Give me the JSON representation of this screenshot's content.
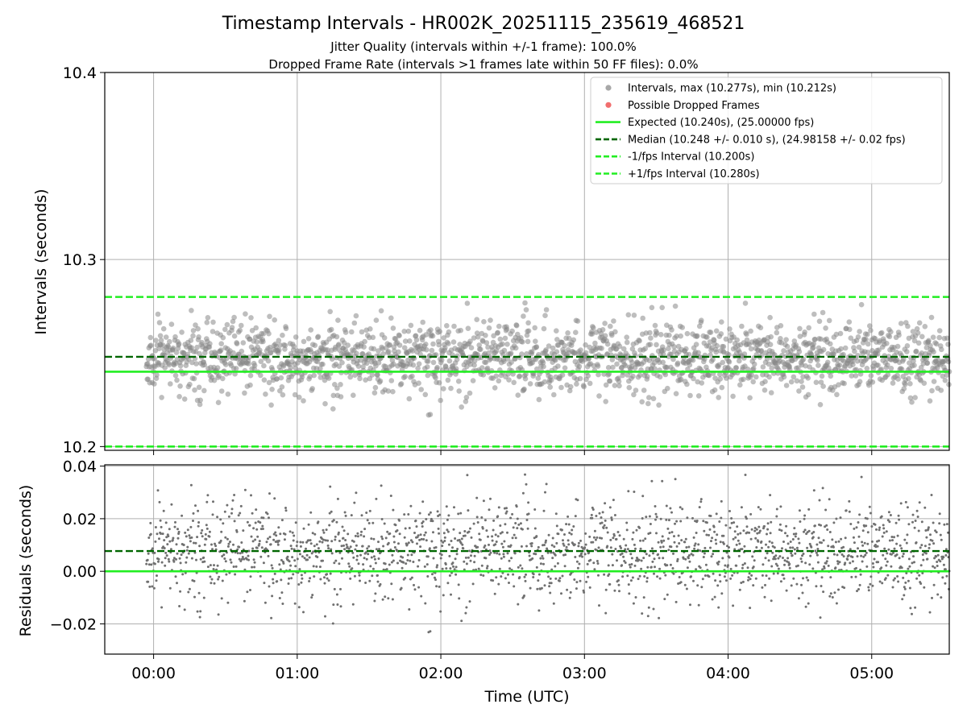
{
  "chart_data": [
    {
      "type": "scatter",
      "panel": "intervals",
      "title": "Timestamp Intervals - HR002K_20251115_235619_468521",
      "subtitle_1": "Jitter Quality (intervals within +/-1 frame): 100.0%",
      "subtitle_2": "Dropped Frame Rate (intervals >1 frames late within 50 FF files): 0.0%",
      "xlabel": "",
      "ylabel": "Intervals (seconds)",
      "xlim_hours": [
        -0.34,
        5.54
      ],
      "ylim": [
        10.198,
        10.4
      ],
      "yticks": [
        10.2,
        10.3,
        10.4
      ],
      "ytick_labels": [
        "10.2",
        "10.3",
        "10.4"
      ],
      "grid": true,
      "legend_position": "top-right",
      "legend": [
        {
          "label": "Intervals, max (10.277s), min (10.212s)",
          "kind": "point",
          "color": "#999999"
        },
        {
          "label": "Possible Dropped Frames",
          "kind": "point",
          "color": "#ee5555"
        },
        {
          "label": "Expected (10.240s), (25.00000 fps)",
          "kind": "solid",
          "color": "#22ee22"
        },
        {
          "label": "Median (10.248 +/- 0.010 s), (24.98158 +/- 0.02 fps)",
          "kind": "dashed",
          "color": "#006600"
        },
        {
          "label": "-1/fps Interval (10.200s)",
          "kind": "dashed",
          "color": "#22ee22"
        },
        {
          "label": "+1/fps Interval (10.280s)",
          "kind": "dashed",
          "color": "#22ee22"
        }
      ],
      "reference_lines": {
        "expected": 10.24,
        "median": 10.248,
        "minus_1fps": 10.2,
        "plus_1fps": 10.28
      },
      "series": [
        {
          "name": "Intervals",
          "n_points": 1950,
          "x_range_hours": [
            -0.05,
            5.54
          ],
          "mean": 10.248,
          "std": 0.0095,
          "max": 10.277,
          "min": 10.212
        },
        {
          "name": "Possible Dropped Frames",
          "n_points": 0
        }
      ]
    },
    {
      "type": "scatter",
      "panel": "residuals",
      "xlabel": "Time (UTC)",
      "ylabel": "Residuals (seconds)",
      "xlim_hours": [
        -0.34,
        5.54
      ],
      "ylim": [
        -0.0315,
        0.0405
      ],
      "xticks_hours": [
        0,
        1,
        2,
        3,
        4,
        5
      ],
      "xtick_labels": [
        "00:00",
        "01:00",
        "02:00",
        "03:00",
        "04:00",
        "05:00"
      ],
      "yticks": [
        -0.02,
        0.0,
        0.02,
        0.04
      ],
      "ytick_labels": [
        "−0.02",
        "0.00",
        "0.02",
        "0.04"
      ],
      "grid": true,
      "reference_lines": {
        "zero": 0.0,
        "median_offset": 0.0077
      },
      "series": [
        {
          "name": "Residuals",
          "n_points": 1950,
          "mean": 0.008,
          "std": 0.0095,
          "max": 0.037,
          "min": -0.028
        }
      ]
    }
  ]
}
